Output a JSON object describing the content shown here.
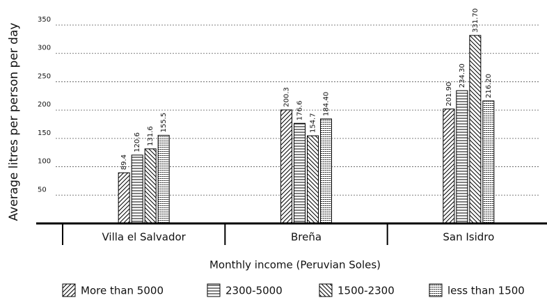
{
  "chart_data": {
    "type": "bar",
    "y_label": "Average litres per person per day",
    "x_label": "Monthly income (Peruvian Soles)",
    "categories": [
      "Villa el Salvador",
      "Breña",
      "San Isidro"
    ],
    "series": [
      {
        "name": "More than 5000",
        "color": "#000000",
        "values": [
          89.4,
          200.3,
          201.9
        ],
        "value_labels": [
          "89.4",
          "200.3",
          "201.90"
        ]
      },
      {
        "name": "2300-5000",
        "color": "#000000",
        "values": [
          120.6,
          176.6,
          234.3
        ],
        "value_labels": [
          "120.6",
          "176.6",
          "234.30"
        ]
      },
      {
        "name": "1500-2300",
        "color": "#000000",
        "values": [
          131.6,
          154.7,
          331.7
        ],
        "value_labels": [
          "131.6",
          "154.7",
          "331.70"
        ]
      },
      {
        "name": "less than 1500",
        "color": "#000000",
        "values": [
          155.5,
          184.4,
          216.2
        ],
        "value_labels": [
          "155.5",
          "184.40",
          "216.20"
        ]
      }
    ],
    "ylim": [
      0,
      350
    ],
    "yticks": [
      50,
      100,
      150,
      200,
      250,
      300,
      350
    ],
    "grid": true
  }
}
